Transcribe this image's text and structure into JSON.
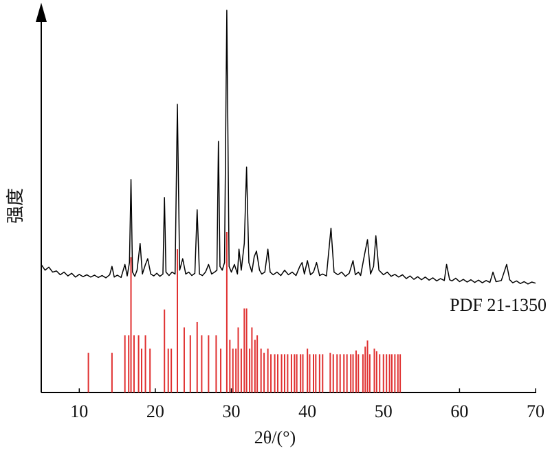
{
  "chart_data": {
    "type": "line",
    "xlabel": "2θ/(°)",
    "ylabel": "强度",
    "xlim": [
      5,
      70
    ],
    "xticks": [
      10,
      20,
      30,
      40,
      50,
      60,
      70
    ],
    "ylim": [
      0,
      100
    ],
    "series": [
      {
        "type": "line",
        "color": "#000000",
        "x": [
          5,
          5.5,
          6,
          6.5,
          7,
          7.5,
          8,
          8.5,
          9,
          9.5,
          10,
          10.5,
          11,
          11.5,
          12,
          12.5,
          13,
          13.5,
          14,
          14.3,
          14.6,
          15,
          15.5,
          16,
          16.3,
          16.6,
          16.8,
          17.0,
          17.3,
          17.6,
          18.0,
          18.3,
          18.7,
          19.0,
          19.4,
          19.8,
          20.2,
          20.6,
          21.0,
          21.2,
          21.4,
          21.8,
          22.2,
          22.6,
          22.9,
          23.2,
          23.6,
          24.0,
          24.4,
          24.8,
          25.2,
          25.5,
          25.8,
          26.2,
          26.6,
          27.0,
          27.4,
          27.8,
          28.1,
          28.3,
          28.5,
          28.8,
          29.1,
          29.4,
          29.7,
          30.0,
          30.4,
          30.8,
          31.0,
          31.3,
          31.7,
          32.0,
          32.3,
          32.7,
          33.0,
          33.3,
          33.7,
          34.0,
          34.4,
          34.8,
          35.1,
          35.5,
          36,
          36.5,
          37,
          37.5,
          38,
          38.5,
          39,
          39.3,
          39.6,
          40.0,
          40.4,
          40.8,
          41.2,
          41.6,
          42,
          42.5,
          43.1,
          43.5,
          44,
          44.5,
          45,
          45.5,
          46,
          46.3,
          46.7,
          47,
          47.5,
          47.9,
          48.3,
          48.7,
          49.0,
          49.4,
          50,
          50.5,
          51,
          51.5,
          52,
          52.5,
          53,
          53.5,
          54,
          54.5,
          55,
          55.5,
          56,
          56.5,
          57,
          57.5,
          58,
          58.3,
          58.7,
          59,
          59.5,
          60,
          60.5,
          61,
          61.5,
          62,
          62.5,
          63,
          63.5,
          64,
          64.4,
          64.8,
          65.5,
          66.2,
          66.6,
          67,
          67.5,
          68,
          68.5,
          69,
          69.5,
          70
        ],
        "values": [
          33.5,
          32,
          32.8,
          31.5,
          31.8,
          30.8,
          31.5,
          30.5,
          31.2,
          30.2,
          30.9,
          30.3,
          30.8,
          30.2,
          30.7,
          30.1,
          30.6,
          30,
          30.8,
          33,
          30.2,
          30.7,
          30.1,
          33.5,
          30.5,
          34,
          55.7,
          31.5,
          30.4,
          32,
          39,
          31,
          33.5,
          35,
          31,
          30.5,
          31.2,
          30.4,
          31,
          51,
          31.5,
          30.6,
          31.5,
          31,
          75.4,
          32,
          35,
          31,
          31.5,
          30.6,
          31.2,
          47.8,
          31,
          30.6,
          31.5,
          33.5,
          31,
          31.5,
          32,
          65.7,
          33,
          32,
          34,
          100,
          33,
          31.5,
          33.5,
          31,
          37.5,
          32,
          39,
          59,
          34,
          31.5,
          35.5,
          37,
          32,
          31,
          31.5,
          37.5,
          31.5,
          30.8,
          31.5,
          30.6,
          32,
          30.8,
          31.5,
          30.6,
          33,
          34,
          31,
          34.5,
          30.8,
          31.5,
          34,
          30.6,
          31,
          30.5,
          43,
          31.5,
          30.8,
          31.5,
          30.4,
          31.2,
          34.5,
          30.8,
          31.5,
          30.6,
          36,
          40,
          31,
          33,
          41,
          32,
          30.8,
          31.5,
          30.4,
          30.9,
          30.2,
          30.8,
          29.8,
          30.5,
          29.6,
          30.3,
          29.5,
          30.2,
          29.4,
          30,
          29.2,
          29.8,
          29.3,
          33.5,
          29.5,
          29.2,
          29.9,
          29,
          29.6,
          28.9,
          29.5,
          28.8,
          29.4,
          28.7,
          29.3,
          28.8,
          31.5,
          29,
          29.3,
          33.5,
          29.5,
          28.7,
          29.2,
          28.5,
          29,
          28.4,
          28.9,
          28.6
        ]
      },
      {
        "type": "stick",
        "name": "PDF 21-1350",
        "color": "#e03030",
        "x": [
          11.2,
          14.3,
          16.0,
          16.5,
          16.8,
          17.2,
          17.8,
          18.2,
          18.7,
          19.3,
          21.2,
          21.7,
          22.1,
          22.9,
          23.8,
          24.6,
          25.5,
          26.1,
          27.0,
          28.0,
          28.6,
          29.4,
          29.8,
          30.2,
          30.6,
          30.9,
          31.3,
          31.7,
          32.0,
          32.4,
          32.7,
          33.1,
          33.4,
          33.9,
          34.3,
          34.8,
          35.2,
          35.7,
          36.1,
          36.6,
          37.0,
          37.4,
          37.9,
          38.3,
          38.6,
          39.1,
          39.4,
          40.0,
          40.3,
          40.8,
          41.1,
          41.6,
          42.0,
          43.0,
          43.4,
          43.9,
          44.3,
          44.8,
          45.2,
          45.7,
          46.0,
          46.4,
          46.7,
          47.3,
          47.6,
          47.9,
          48.2,
          48.8,
          49.1,
          49.5,
          50.0,
          50.4,
          50.8,
          51.1,
          51.5,
          51.9,
          52.2
        ],
        "values": [
          10.4,
          10.4,
          15,
          15,
          35.4,
          15,
          15,
          11.5,
          15,
          11.5,
          21.7,
          11.5,
          11.5,
          37.5,
          17,
          15,
          18.5,
          15,
          15,
          15,
          11.5,
          42,
          13.8,
          11.5,
          11.5,
          17,
          11.5,
          22,
          22,
          11.5,
          17,
          13.8,
          15,
          11.5,
          10.4,
          11.5,
          10,
          10,
          10,
          10,
          10,
          10,
          10,
          10,
          10,
          10,
          10,
          11.5,
          10,
          10,
          10,
          10,
          10,
          10.4,
          10,
          10,
          10,
          10,
          10,
          10,
          10,
          11,
          10,
          10,
          12,
          13.6,
          10,
          11.5,
          10.8,
          10,
          10,
          10,
          10,
          10,
          10,
          10,
          10
        ]
      }
    ]
  }
}
